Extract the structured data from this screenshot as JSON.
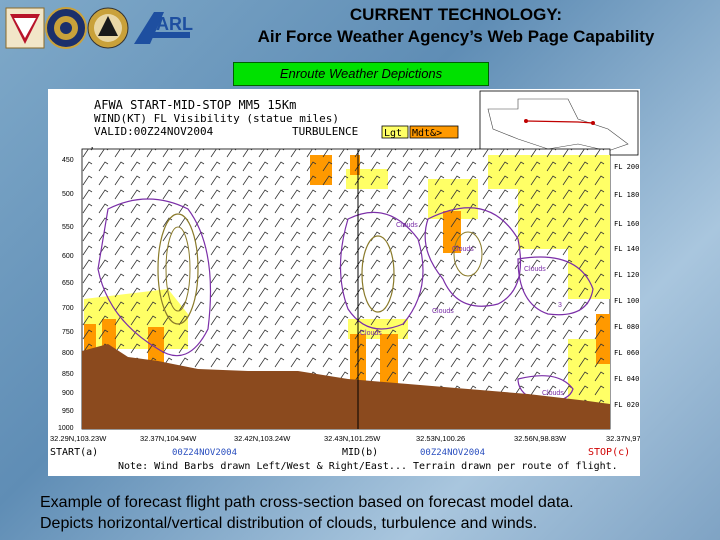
{
  "header": {
    "title_line1": "CURRENT TECHNOLOGY:",
    "title_line2": "Air Force Weather Agency’s Web Page Capability",
    "logos": [
      "army-seal-icon",
      "navy-seal-icon",
      "air-force-seal-icon",
      "arl-logo-icon"
    ],
    "logo_text": "ARL"
  },
  "section_label": "Enroute Weather Depictions",
  "chart": {
    "header_line1": "AFWA START-MID-STOP MM5 15Km",
    "header_line2": "WIND(KT) FL Visibility (statue miles)",
    "header_line3": "VALID:00Z24NOV2004",
    "turbulence_label": "TURBULENCE",
    "turb_light": "Lgt",
    "turb_moderate": "Mdt&>",
    "pressure_unit": "mb",
    "pressure_levels": [
      "450",
      "500",
      "550",
      "600",
      "650",
      "700",
      "750",
      "800",
      "850",
      "900",
      "950",
      "1000"
    ],
    "flight_levels": [
      "FL 200",
      "FL 180",
      "FL 160",
      "FL 140",
      "FL 120",
      "FL 100",
      "FL 080",
      "FL 060",
      "FL 040",
      "FL 020"
    ],
    "cloud_labels": [
      "Clouds",
      "Clouds",
      "Clouds",
      "Clouds",
      "Clouds",
      "Clouds"
    ],
    "contour_value": "3",
    "positions": [
      "32.29N,103.23W",
      "32.37N,104.94W",
      "32.42N,103.24W",
      "32.43N,101.25W",
      "32.53N,100.26",
      "32.56N,98.83W",
      "32.37N,97.3W"
    ],
    "start_label": "START(a)",
    "start_time": "00Z24NOV2004",
    "mid_label": "MID(b)",
    "mid_time": "00Z24NOV2004",
    "stop_label": "STOP(c)",
    "note": "Note: Wind Barbs drawn Left/West & Right/East... Terrain drawn per route of flight.",
    "colors": {
      "light_turb": "#ffff66",
      "moderate_turb": "#ff9900",
      "terrain": "#8b4a1e",
      "cloud_contour": "#7b2fa8",
      "visibility_contour": "#8a7a2a"
    }
  },
  "caption": {
    "line1": "Example of forecast flight path cross-section based on forecast model data.",
    "line2": "Depicts horizontal/vertical distribution of clouds, turbulence and winds."
  }
}
